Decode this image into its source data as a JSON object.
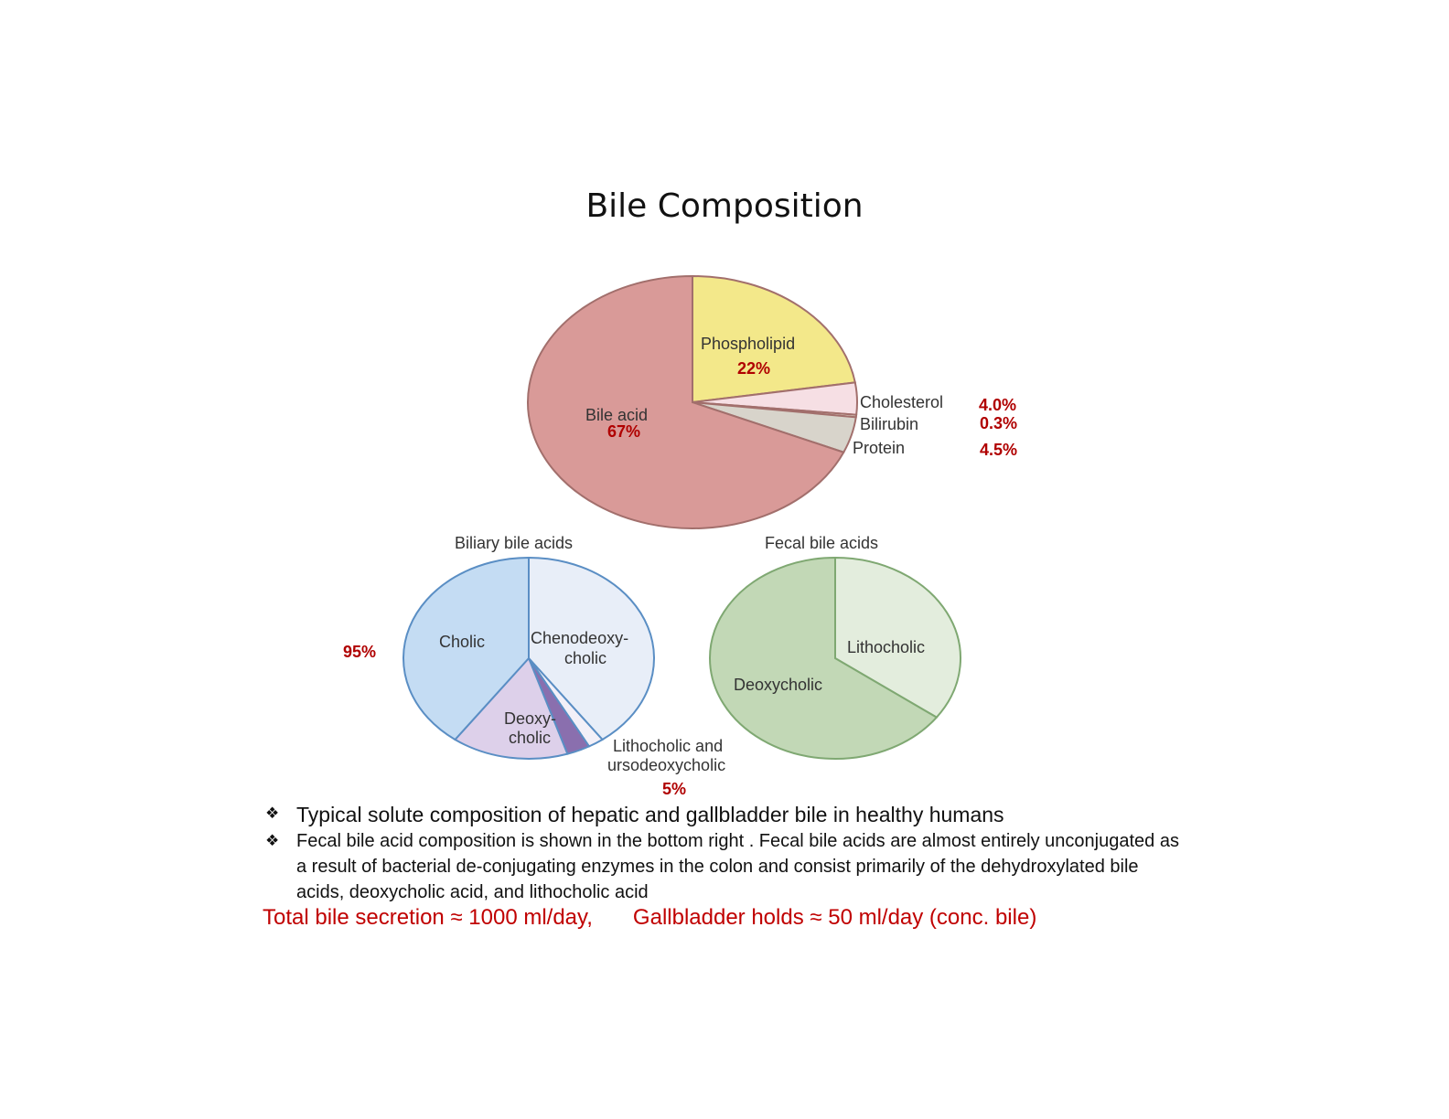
{
  "title": "Bile Composition",
  "chart_data": [
    {
      "type": "pie",
      "name": "main",
      "slices": [
        {
          "label": "Bile acid",
          "value": 67,
          "pct_label": "67%",
          "color": "#d99a98"
        },
        {
          "label": "Phospholipid",
          "value": 22,
          "pct_label": "22%",
          "color": "#f3e88a"
        },
        {
          "label": "Cholesterol",
          "value": 4.0,
          "pct_label": "4.0%",
          "color": "#f6dfe4"
        },
        {
          "label": "Bilirubin",
          "value": 0.3,
          "pct_label": "0.3%",
          "color": "#e3dccd"
        },
        {
          "label": "Protein",
          "value": 4.5,
          "pct_label": "4.5%",
          "color": "#d8d4cb"
        }
      ]
    },
    {
      "type": "pie",
      "name": "biliary",
      "title": "Biliary bile acids",
      "slices": [
        {
          "label": "Cholic",
          "value": 40,
          "color": "#c4dcf3"
        },
        {
          "label": "Chenodeoxy-\ncholic",
          "value": 40,
          "color": "#e8eef8"
        },
        {
          "label": "Lithocholic and\nursodeoxycholic",
          "value": 2,
          "color": "#f3f0f8"
        },
        {
          "label": "",
          "value": 3,
          "color": "#8a6fae"
        },
        {
          "label": "Deoxy-\ncholic",
          "value": 15,
          "color": "#ddd0ea"
        }
      ],
      "annotations": {
        "left": "95%",
        "bottom": "5%"
      }
    },
    {
      "type": "pie",
      "name": "fecal",
      "title": "Fecal bile acids",
      "slices": [
        {
          "label": "Lithocholic",
          "value": 35,
          "color": "#e3eddd"
        },
        {
          "label": "Deoxycholic",
          "value": 65,
          "color": "#c2d8b6"
        }
      ]
    }
  ],
  "bullets": [
    "Typical solute composition of hepatic and gallbladder bile in healthy humans",
    "Fecal bile acid composition is shown in the bottom right . Fecal bile acids are almost entirely unconjugated as a result of bacterial de-conjugating enzymes in the colon and consist primarily of the dehydroxylated bile acids, deoxycholic acid, and lithocholic acid"
  ],
  "bullet_symbol": "❖",
  "footer": {
    "left": "Total bile secretion ≈ 1000 ml/day,",
    "right": "Gallbladder holds ≈ 50 ml/day (conc. bile)"
  }
}
